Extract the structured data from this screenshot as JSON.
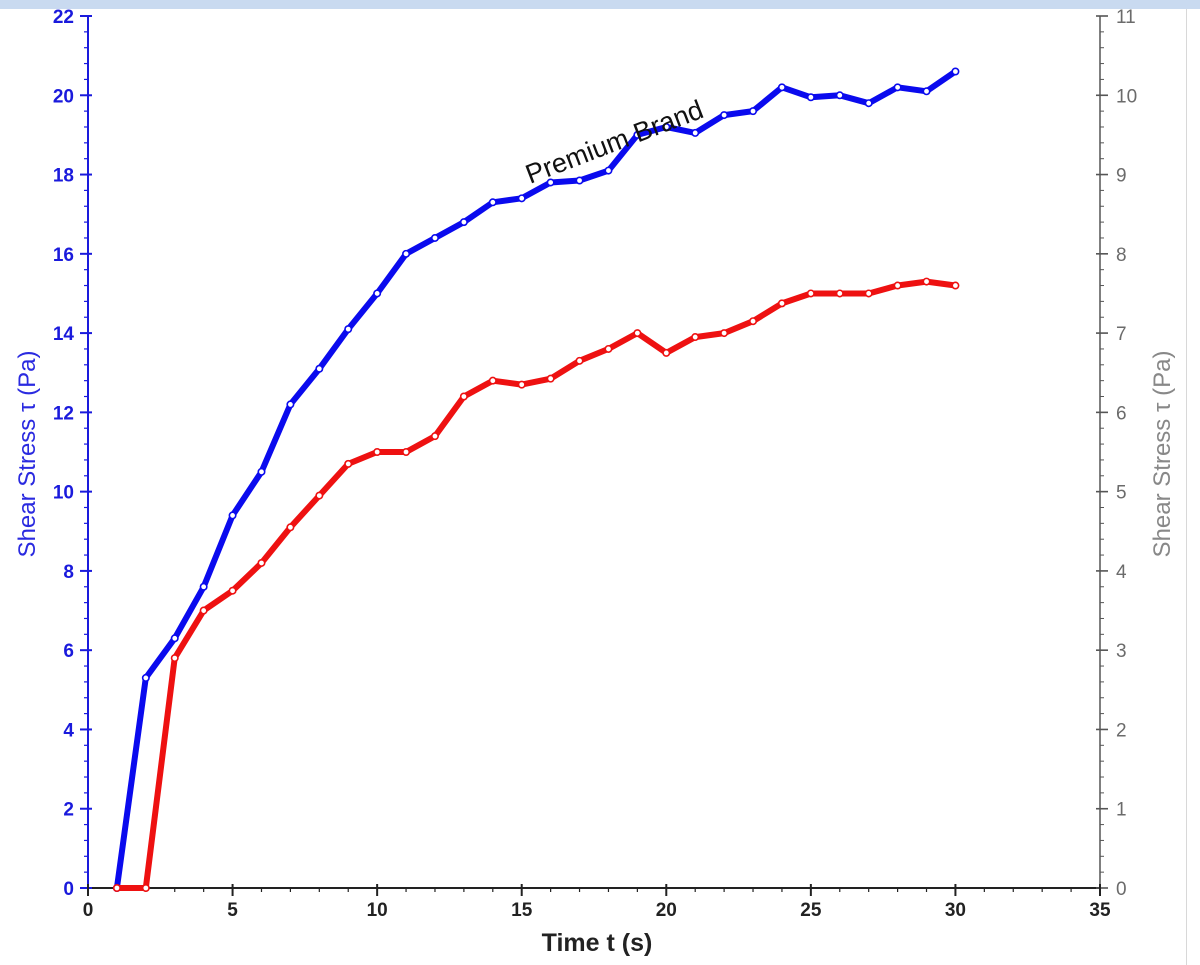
{
  "chart_data": {
    "type": "line",
    "xlabel": "Time t (s)",
    "ylabel_left": "Shear Stress τ (Pa)",
    "ylabel_right": "Shear Stress τ (Pa)",
    "xlim": [
      0,
      35
    ],
    "ylim_left": [
      0,
      22
    ],
    "ylim_right": [
      0,
      11
    ],
    "x_ticks": [
      0,
      5,
      10,
      15,
      20,
      25,
      30,
      35
    ],
    "y_ticks_left": [
      0,
      2,
      4,
      6,
      8,
      10,
      12,
      14,
      16,
      18,
      20,
      22
    ],
    "y_ticks_right": [
      0,
      1,
      2,
      3,
      4,
      5,
      6,
      7,
      8,
      9,
      10,
      11
    ],
    "annotation": "Premium Brand",
    "grid": false,
    "series": [
      {
        "axis": "left",
        "color": "#0a0aee",
        "points": [
          [
            1,
            0
          ],
          [
            2,
            5.3
          ],
          [
            3,
            6.3
          ],
          [
            4,
            7.6
          ],
          [
            5,
            9.4
          ],
          [
            6,
            10.5
          ],
          [
            7,
            12.2
          ],
          [
            8,
            13.1
          ],
          [
            9,
            14.1
          ],
          [
            10,
            15
          ],
          [
            11,
            16
          ],
          [
            12,
            16.4
          ],
          [
            13,
            16.8
          ],
          [
            14,
            17.3
          ],
          [
            15,
            17.4
          ],
          [
            16,
            17.8
          ],
          [
            17,
            17.85
          ],
          [
            18,
            18.1
          ],
          [
            19,
            19
          ],
          [
            20,
            19.2
          ],
          [
            21,
            19.05
          ],
          [
            22,
            19.5
          ],
          [
            23,
            19.6
          ],
          [
            24,
            20.2
          ],
          [
            25,
            19.95
          ],
          [
            26,
            20
          ],
          [
            27,
            19.8
          ],
          [
            28,
            20.2
          ],
          [
            29,
            20.1
          ],
          [
            30,
            20.6
          ]
        ]
      },
      {
        "axis": "left",
        "color": "#ee1111",
        "points": [
          [
            1,
            0
          ],
          [
            2,
            0
          ],
          [
            3,
            5.8
          ],
          [
            4,
            7
          ],
          [
            5,
            7.5
          ],
          [
            6,
            8.2
          ],
          [
            7,
            9.1
          ],
          [
            8,
            9.9
          ],
          [
            9,
            10.7
          ],
          [
            10,
            11
          ],
          [
            11,
            11
          ],
          [
            12,
            11.4
          ],
          [
            13,
            12.4
          ],
          [
            14,
            12.8
          ],
          [
            15,
            12.7
          ],
          [
            16,
            12.85
          ],
          [
            17,
            13.3
          ],
          [
            18,
            13.6
          ],
          [
            19,
            14
          ],
          [
            20,
            13.5
          ],
          [
            21,
            13.9
          ],
          [
            22,
            14
          ],
          [
            23,
            14.3
          ],
          [
            24,
            14.75
          ],
          [
            25,
            15
          ],
          [
            26,
            15
          ],
          [
            27,
            15
          ],
          [
            28,
            15.2
          ],
          [
            29,
            15.3
          ],
          [
            30,
            15.2
          ]
        ]
      }
    ]
  }
}
